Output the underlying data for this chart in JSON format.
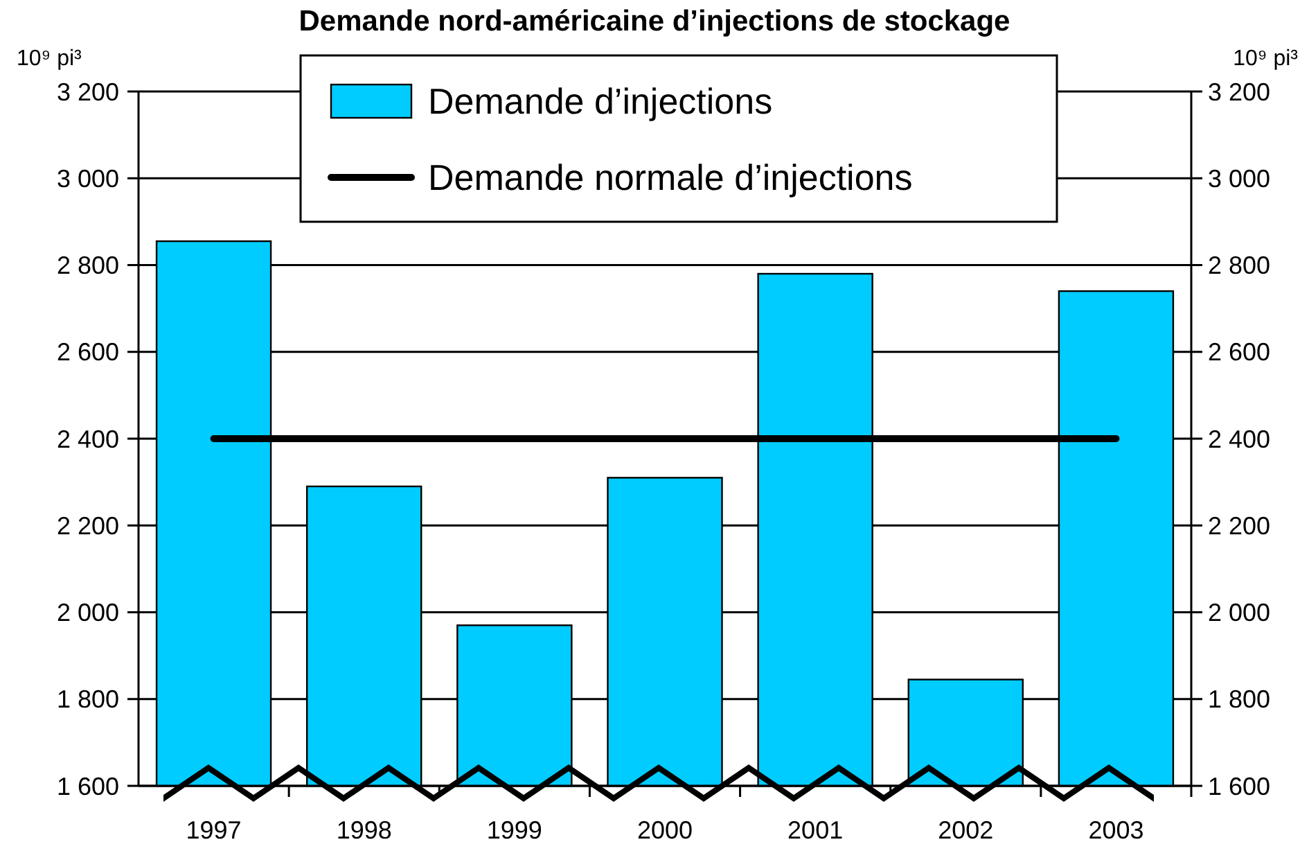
{
  "chart_data": {
    "type": "bar",
    "title": "Demande nord-américaine d’injections de stockage",
    "ylabel": "10⁹ pi³",
    "y2label": "10⁹ pi³",
    "categories": [
      "1997",
      "1998",
      "1999",
      "2000",
      "2001",
      "2002",
      "2003"
    ],
    "series": [
      {
        "name": "Demande d’injections",
        "color": "#00ccff",
        "values": [
          2855,
          2290,
          1970,
          2310,
          2780,
          1845,
          2740
        ]
      },
      {
        "name": "Demande normale d’injections",
        "type": "line",
        "color": "#000000",
        "values": [
          2400,
          2400,
          2400,
          2400,
          2400,
          2400,
          2400
        ]
      }
    ],
    "ylim": [
      1600,
      3200
    ],
    "yticks": [
      {
        "value": 1600,
        "label": "1 600"
      },
      {
        "value": 1800,
        "label": "1 800"
      },
      {
        "value": 2000,
        "label": "2 000"
      },
      {
        "value": 2200,
        "label": "2 200"
      },
      {
        "value": 2400,
        "label": "2 400"
      },
      {
        "value": 2600,
        "label": "2 600"
      },
      {
        "value": 2800,
        "label": "2 800"
      },
      {
        "value": 3000,
        "label": "3 000"
      },
      {
        "value": 3200,
        "label": "3 200"
      }
    ],
    "y2lim": [
      1600,
      3200
    ],
    "y2ticks": [
      {
        "value": 1600,
        "label": "1 600"
      },
      {
        "value": 1800,
        "label": "1 800"
      },
      {
        "value": 2000,
        "label": "2 000"
      },
      {
        "value": 2200,
        "label": "2 200"
      },
      {
        "value": 2400,
        "label": "2 400"
      },
      {
        "value": 2600,
        "label": "2 600"
      },
      {
        "value": 2800,
        "label": "2 800"
      },
      {
        "value": 3000,
        "label": "3 000"
      },
      {
        "value": 3200,
        "label": "3 200"
      }
    ],
    "grid": "y",
    "legend": "top",
    "marker": "none",
    "line_style": "solid"
  }
}
